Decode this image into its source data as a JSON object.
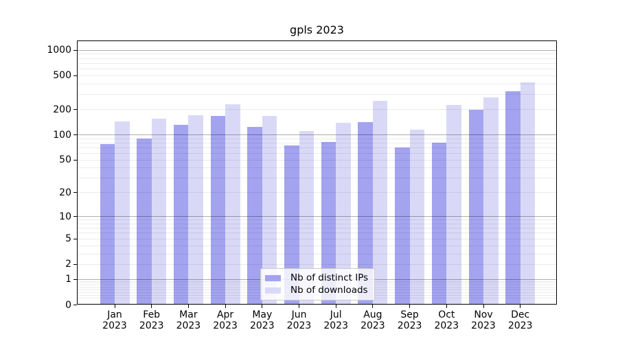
{
  "chart_data": {
    "type": "bar",
    "title": "gpls 2023",
    "categories": [
      "Jan 2023",
      "Feb 2023",
      "Mar 2023",
      "Apr 2023",
      "May 2023",
      "Jun 2023",
      "Jul 2023",
      "Aug 2023",
      "Sep 2023",
      "Oct 2023",
      "Nov 2023",
      "Dec 2023"
    ],
    "series": [
      {
        "name": "Nb of distinct IPs",
        "color": "#a3a3f0",
        "values": [
          78,
          91,
          132,
          168,
          123,
          75,
          82,
          142,
          71,
          80,
          200,
          330
        ]
      },
      {
        "name": "Nb of downloads",
        "color": "#d9d9f7",
        "values": [
          143,
          155,
          170,
          230,
          168,
          111,
          140,
          255,
          115,
          225,
          280,
          420
        ]
      }
    ],
    "yscale": "log1p",
    "ylim": [
      0,
      1300
    ],
    "yticks": [
      1000,
      500,
      200,
      100,
      50,
      20,
      10,
      5,
      2,
      1,
      0
    ],
    "grid": "on",
    "grid_above_bars": true,
    "legend": {
      "position": "lower-center",
      "entries": [
        "Nb of distinct IPs",
        "Nb of downloads"
      ]
    }
  }
}
